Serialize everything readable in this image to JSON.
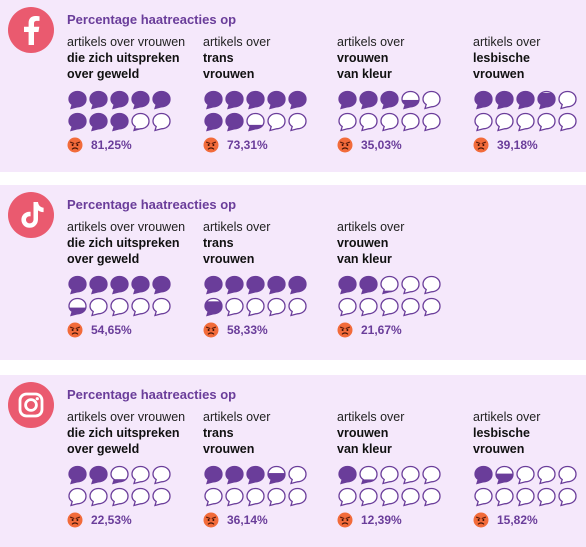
{
  "colors": {
    "panel_bg": "#f5e8fb",
    "accent": "#6a3d9a",
    "logo_bg": "#ea5a6f",
    "bubble_fill": "#6a3d9a",
    "bubble_outline": "#6a3d9a"
  },
  "panels": [
    {
      "platform_icon": "facebook-icon",
      "title": "Percentage haatreacties op",
      "columns": [
        {
          "line1": "artikels over vrouwen",
          "line2": "die zich uitspreken",
          "line3": "over geweld",
          "percentage_label": "81,25%",
          "value": 81.25,
          "emoji": "angry-face-emoji"
        },
        {
          "line1": "artikels over",
          "line2": "trans",
          "line3": "vrouwen",
          "percentage_label": "73,31%",
          "value": 73.31,
          "emoji": "angry-face-emoji"
        },
        {
          "line1": "artikels over",
          "line2": "vrouwen",
          "line3": "van kleur",
          "percentage_label": "35,03%",
          "value": 35.03,
          "emoji": "angry-face-emoji"
        },
        {
          "line1": "artikels over",
          "line2": "lesbische",
          "line3": "vrouwen",
          "percentage_label": "39,18%",
          "value": 39.18,
          "emoji": "angry-face-emoji"
        }
      ]
    },
    {
      "platform_icon": "tiktok-icon",
      "title": "Percentage haatreacties op",
      "columns": [
        {
          "line1": "artikels over vrouwen",
          "line2": "die zich uitspreken",
          "line3": "over geweld",
          "percentage_label": "54,65%",
          "value": 54.65,
          "emoji": "angry-face-emoji"
        },
        {
          "line1": "artikels over",
          "line2": "trans",
          "line3": "vrouwen",
          "percentage_label": "58,33%",
          "value": 58.33,
          "emoji": "angry-face-emoji"
        },
        {
          "line1": "artikels over",
          "line2": "vrouwen",
          "line3": "van kleur",
          "percentage_label": "21,67%",
          "value": 21.67,
          "emoji": "angry-face-emoji"
        }
      ]
    },
    {
      "platform_icon": "instagram-icon",
      "title": "Percentage haatreacties op",
      "columns": [
        {
          "line1": "artikels over vrouwen",
          "line2": "die zich uitspreken",
          "line3": "over geweld",
          "percentage_label": "22,53%",
          "value": 22.53,
          "emoji": "angry-face-emoji"
        },
        {
          "line1": "artikels over",
          "line2": "trans",
          "line3": "vrouwen",
          "percentage_label": "36,14%",
          "value": 36.14,
          "emoji": "angry-face-emoji"
        },
        {
          "line1": "artikels over",
          "line2": "vrouwen",
          "line3": "van kleur",
          "percentage_label": "12,39%",
          "value": 12.39,
          "emoji": "angry-face-emoji"
        },
        {
          "line1": "artikels over",
          "line2": "lesbische",
          "line3": "vrouwen",
          "percentage_label": "15,82%",
          "value": 15.82,
          "emoji": "angry-face-emoji"
        }
      ]
    }
  ]
}
